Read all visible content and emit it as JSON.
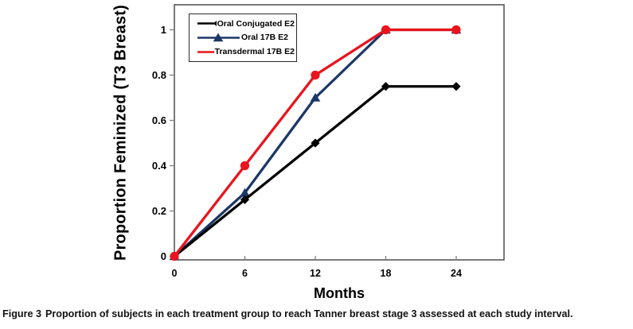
{
  "chart_data": {
    "type": "line",
    "title": "",
    "xlabel": "Months",
    "ylabel": "Proportion Feminized (T3 Breast)",
    "x": [
      0,
      6,
      12,
      18,
      24
    ],
    "x_tick_labels": [
      "0",
      "6",
      "12",
      "18",
      "24"
    ],
    "y_ticks": [
      0,
      0.2,
      0.4,
      0.6,
      0.8,
      1
    ],
    "y_tick_labels": [
      "0",
      "0.2",
      "0.4",
      "0.6",
      "0.8",
      "1"
    ],
    "xlim": [
      0,
      28
    ],
    "ylim": [
      0,
      1.1
    ],
    "grid": false,
    "legend_position": "top-left-inside",
    "series": [
      {
        "name": "Oral Conjugated E2",
        "color": "#000000",
        "marker": "diamond",
        "values": [
          0,
          0.25,
          0.5,
          0.75,
          0.75
        ]
      },
      {
        "name": "Oral 17B E2",
        "color": "#1c3768",
        "marker": "triangle",
        "values": [
          0,
          0.28,
          0.7,
          1,
          1
        ]
      },
      {
        "name": "Transdermal 17B E2",
        "color": "#e9141d",
        "marker": "circle",
        "values": [
          0,
          0.4,
          0.8,
          1,
          1
        ]
      }
    ],
    "axis_color": "#4d4d4d",
    "tick_color": "#7f7f7f"
  },
  "caption": {
    "label": "Figure 3",
    "text": "Proportion of subjects in each treatment group to reach Tanner breast stage 3 assessed at each study interval."
  }
}
